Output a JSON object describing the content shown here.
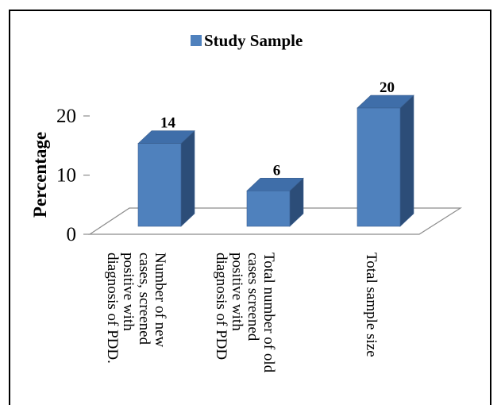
{
  "chart_data": {
    "type": "bar",
    "title": "",
    "xlabel": "",
    "ylabel": "Percentage",
    "ylim": [
      0,
      20
    ],
    "yticks": [
      0,
      10,
      20
    ],
    "categories": [
      "Number of new cases, screened positive with diagnosis of PDD.",
      "Total number of old cases screened positive with diagnosis of PDD",
      "Total sample size"
    ],
    "category_lines": [
      [
        "Number of new",
        "cases, screened",
        "positive with",
        "diagnosis of PDD."
      ],
      [
        "Total number of old",
        "cases screened",
        "positive with",
        "diagnosis of PDD"
      ],
      [
        "Total sample size"
      ]
    ],
    "series": [
      {
        "name": "Study Sample",
        "values": [
          14,
          6,
          20
        ]
      }
    ],
    "data_labels": [
      "14",
      "6",
      "20"
    ],
    "legend_position": "top",
    "grid": false,
    "bar_style": "3d",
    "colors": {
      "front": "#4f81bd",
      "top": "#3f6ea9",
      "side": "#2c4d78",
      "outline": "#3a5f8f"
    }
  }
}
